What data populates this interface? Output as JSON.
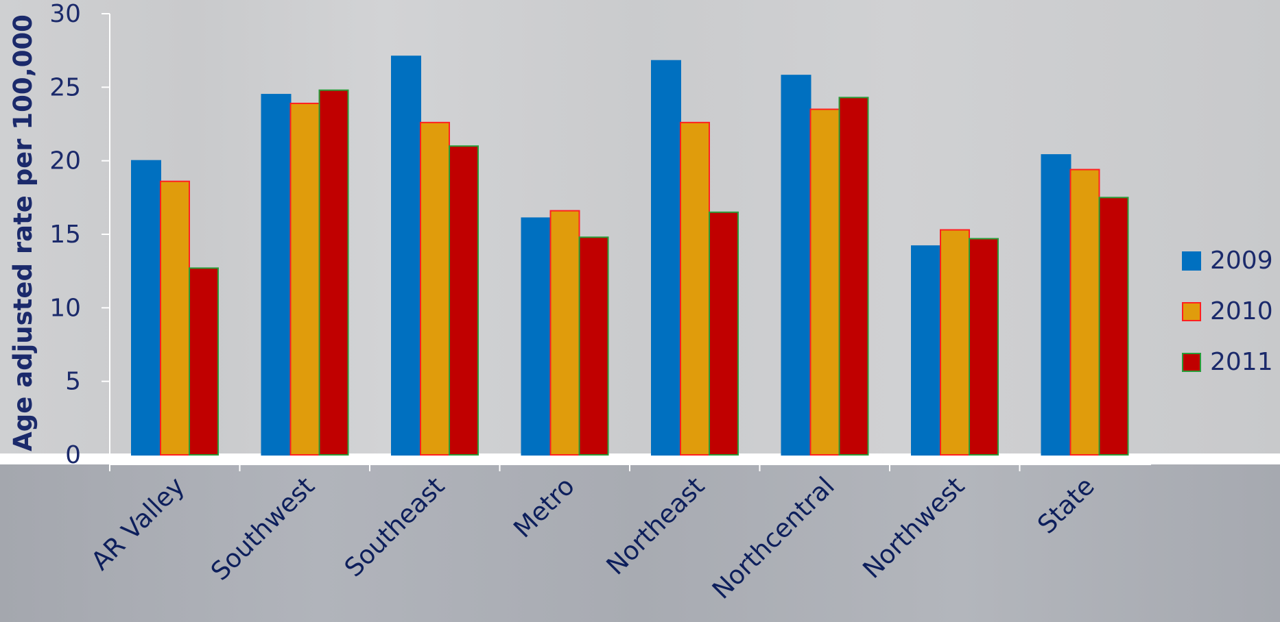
{
  "colors": {
    "series": [
      "#0070c0",
      "#e09c0c",
      "#c00000"
    ],
    "borders": [
      "#0070c0",
      "#ff2020",
      "#2a9d3a"
    ],
    "text": "#1b2a6b"
  },
  "chart_data": {
    "type": "bar",
    "title": "",
    "xlabel": "",
    "ylabel": "Age adjusted rate per 100,000",
    "ylim": [
      0,
      30
    ],
    "yticks": [
      0,
      5,
      10,
      15,
      20,
      25,
      30
    ],
    "grid": false,
    "legend_position": "right",
    "categories": [
      "AR Valley",
      "Southwest",
      "Southeast",
      "Metro",
      "Northeast",
      "Northcentral",
      "Northwest",
      "State"
    ],
    "series": [
      {
        "name": "2009",
        "values": [
          20.0,
          24.5,
          27.1,
          16.1,
          26.8,
          25.8,
          14.2,
          20.4
        ]
      },
      {
        "name": "2010",
        "values": [
          18.6,
          23.9,
          22.6,
          16.6,
          22.6,
          23.5,
          15.3,
          19.4
        ]
      },
      {
        "name": "2011",
        "values": [
          12.7,
          24.8,
          21.0,
          14.8,
          16.5,
          24.3,
          14.7,
          17.5
        ]
      }
    ]
  }
}
